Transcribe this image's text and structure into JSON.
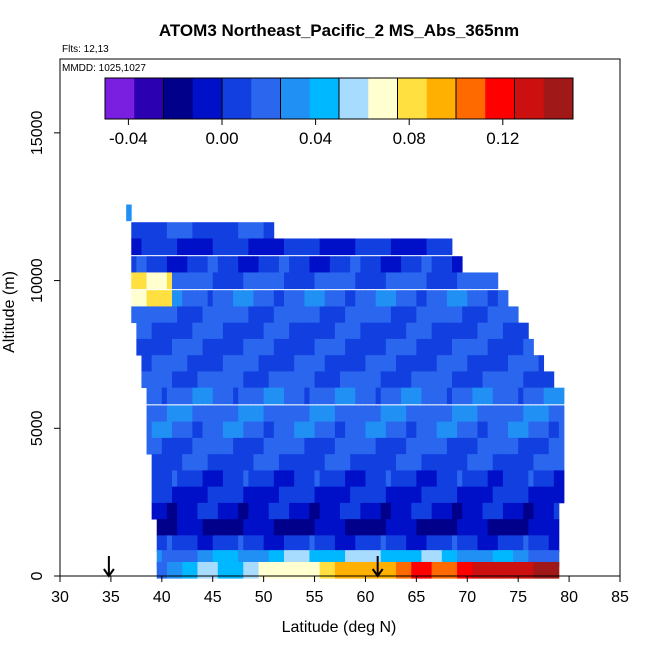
{
  "chart_data": {
    "type": "heatmap",
    "title": "ATOM3 Northeast_Pacific_2 MS_Abs_365nm",
    "flights_label": "Flts: 12,13",
    "dates_label": "MMDD: 1025,1027",
    "xlabel": "Latitude (deg N)",
    "ylabel": "Altitude (m)",
    "xlim": [
      30,
      85
    ],
    "ylim": [
      0,
      17500
    ],
    "x_ticks": [
      "30",
      "35",
      "40",
      "45",
      "50",
      "55",
      "60",
      "65",
      "70",
      "75",
      "80",
      "85"
    ],
    "y_ticks": [
      "0",
      "5000",
      "10000",
      "15000"
    ],
    "colorbar": {
      "ticks": [
        "-0.04",
        "0.00",
        "0.04",
        "0.08",
        "0.12"
      ],
      "tick_values": [
        -0.04,
        0.0,
        0.04,
        0.08,
        0.12
      ],
      "range": [
        -0.05,
        0.15
      ],
      "colors": [
        "#7a1fe0",
        "#2a00b0",
        "#00008b",
        "#0010c8",
        "#1240e0",
        "#2a66ee",
        "#2090f5",
        "#00b8ff",
        "#a8dcff",
        "#ffffd0",
        "#ffe040",
        "#ffb000",
        "#ff6a00",
        "#ff0000",
        "#cc1010",
        "#a01818"
      ]
    },
    "arrows_at_latitude": [
      34.8,
      61.2
    ],
    "altitude_bands": [
      {
        "alt": 12300,
        "lat_start": 36.5,
        "lat_end": 37.0,
        "value": 0.02
      },
      {
        "alt": 11700,
        "lat_start": 37.0,
        "lat_end": 51.0,
        "value": 0.01
      },
      {
        "alt": 11150,
        "lat_start": 37.0,
        "lat_end": 68.5,
        "value": 0.0
      },
      {
        "alt": 10550,
        "lat_start": 37.0,
        "lat_end": 69.5,
        "value": 0.005
      },
      {
        "alt": 10000,
        "lat_start": 37.0,
        "lat_end": 73.0,
        "value": 0.015
      },
      {
        "alt": 9400,
        "lat_start": 37.0,
        "lat_end": 74.0,
        "value": 0.02
      },
      {
        "alt": 8850,
        "lat_start": 37.0,
        "lat_end": 75.0,
        "value": 0.015
      },
      {
        "alt": 8300,
        "lat_start": 37.5,
        "lat_end": 76.0,
        "value": 0.01
      },
      {
        "alt": 7750,
        "lat_start": 37.5,
        "lat_end": 76.5,
        "value": 0.012
      },
      {
        "alt": 7200,
        "lat_start": 38.0,
        "lat_end": 77.5,
        "value": 0.012
      },
      {
        "alt": 6650,
        "lat_start": 38.0,
        "lat_end": 78.5,
        "value": 0.015
      },
      {
        "alt": 6100,
        "lat_start": 38.5,
        "lat_end": 79.5,
        "value": 0.02
      },
      {
        "alt": 5500,
        "lat_start": 38.5,
        "lat_end": 79.5,
        "value": 0.022
      },
      {
        "alt": 4950,
        "lat_start": 38.5,
        "lat_end": 79.5,
        "value": 0.02
      },
      {
        "alt": 4400,
        "lat_start": 38.5,
        "lat_end": 79.5,
        "value": 0.015
      },
      {
        "alt": 3850,
        "lat_start": 39.0,
        "lat_end": 79.5,
        "value": 0.01
      },
      {
        "alt": 3300,
        "lat_start": 39.0,
        "lat_end": 79.5,
        "value": 0.005
      },
      {
        "alt": 2750,
        "lat_start": 39.0,
        "lat_end": 79.5,
        "value": 0.0
      },
      {
        "alt": 2200,
        "lat_start": 39.0,
        "lat_end": 79.0,
        "value": -0.005
      },
      {
        "alt": 1650,
        "lat_start": 39.5,
        "lat_end": 79.0,
        "value": -0.015
      },
      {
        "alt": 1100,
        "lat_start": 39.5,
        "lat_end": 79.0,
        "value": 0.005
      },
      {
        "alt": 600,
        "lat_start": 39.5,
        "lat_end": 79.0,
        "value": 0.03
      },
      {
        "alt": 200,
        "lat_start": 39.5,
        "lat_end": 79.0,
        "value": 0.06
      }
    ]
  }
}
